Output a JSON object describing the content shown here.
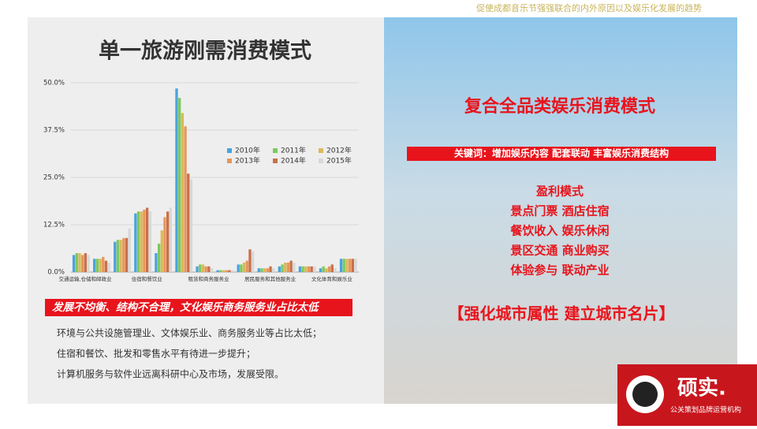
{
  "header": "促使成都音乐节强强联合的内外原因以及娱乐化发展的趋势",
  "chart_data": {
    "type": "bar",
    "title": "单一旅游刚需消费模式",
    "categories": [
      "交通运输,仓储和邮政业",
      null,
      null,
      "住宿和餐饮业",
      null,
      null,
      "租赁和商务服务业",
      null,
      null,
      "居民服务和其他服务业",
      null,
      null,
      "文化体育和娱乐业",
      null
    ],
    "series": [
      {
        "name": "2010年",
        "color": "#4aa3df",
        "values": [
          4.5,
          3.5,
          8,
          15.5,
          5,
          48.5,
          1.5,
          0.5,
          2,
          1,
          1.5,
          1.5,
          1,
          3.5
        ]
      },
      {
        "name": "2011年",
        "color": "#7dc95e",
        "values": [
          5,
          3.5,
          8.5,
          16,
          7.5,
          46,
          2,
          0.5,
          2,
          1,
          2,
          1.5,
          1.5,
          3.5
        ]
      },
      {
        "name": "2012年",
        "color": "#d9b95b",
        "values": [
          5,
          3.5,
          8.5,
          16,
          11,
          42,
          2,
          0.5,
          2.5,
          1,
          2.5,
          1.5,
          1,
          3.5
        ]
      },
      {
        "name": "2013年",
        "color": "#e8965a",
        "values": [
          4.5,
          4,
          9,
          16.5,
          14.5,
          38.5,
          1.5,
          0.5,
          3,
          1,
          2.5,
          1.5,
          1.5,
          3.5
        ]
      },
      {
        "name": "2014年",
        "color": "#c9704a",
        "values": [
          5,
          3,
          9,
          17,
          16,
          26,
          1.5,
          0.5,
          6,
          1.5,
          3,
          1.5,
          2,
          3.5
        ]
      },
      {
        "name": "2015年",
        "color": "#d8d8d8",
        "values": [
          4.5,
          2.5,
          11.5,
          16,
          17,
          24.5,
          1,
          0.5,
          5.5,
          1,
          2.5,
          1.5,
          1,
          3.5
        ]
      }
    ],
    "ylim": [
      0,
      50
    ],
    "yticks": [
      {
        "value": 0,
        "label": "0.0%"
      },
      {
        "value": 12.5,
        "label": "12.5%"
      },
      {
        "value": 25,
        "label": "25.0%"
      },
      {
        "value": 37.5,
        "label": "37.5%"
      },
      {
        "value": 50,
        "label": "50.0%"
      }
    ],
    "grid": true,
    "legend": "upper right"
  },
  "left_banner": "发展不均衡、结构不合理，文化娱乐商务服务业占比太低",
  "left_bullets": [
    "环境与公共设施管理业、文体娱乐业、商务服务业等占比太低；",
    "住宿和餐饮、批发和零售水平有待进一步提升；",
    "计算机服务与软件业远离科研中心及市场，发展受限。"
  ],
  "right_title": "复合全品类娱乐消费模式",
  "keywords": "关键词：增加娱乐内容 配套联动 丰富娱乐消费结构",
  "profit_lines": [
    "盈利模式",
    "景点门票  酒店住宿",
    "餐饮收入  娱乐休闲",
    "景区交通  商业购买",
    "体验参与  联动产业"
  ],
  "slogan": "【强化城市属性 建立城市名片】",
  "logo": {
    "name": "硕实.",
    "tagline": "公关策划品牌运营机构"
  }
}
